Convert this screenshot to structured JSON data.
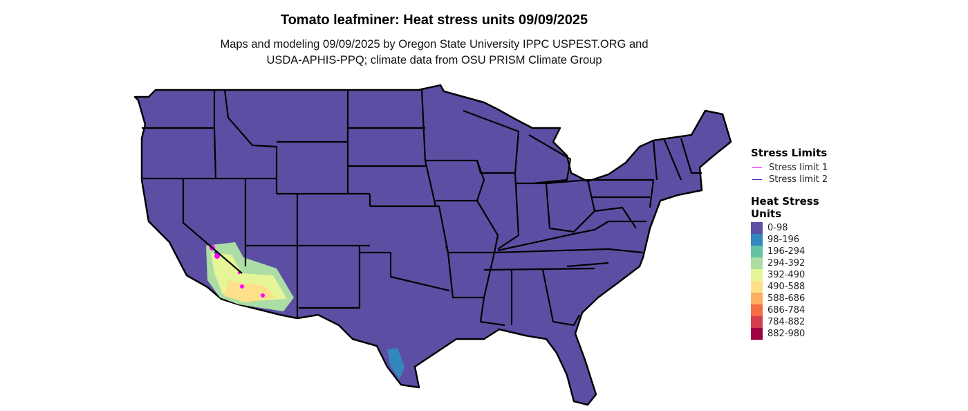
{
  "title": "Tomato leafminer: Heat stress units 09/09/2025",
  "subtitle_line1": "Maps and modeling 09/09/2025 by Oregon State University IPPC USPEST.ORG and",
  "subtitle_line2": "USDA-APHIS-PPQ; climate data from OSU PRISM Climate Group",
  "legend": {
    "stress_title": "Stress Limits",
    "stress_items": [
      {
        "label": "Stress limit 1",
        "color": "#ff00ff"
      },
      {
        "label": "Stress limit 2",
        "color": "#3b2fc9"
      }
    ],
    "heat_title_1": "Heat Stress",
    "heat_title_2": "Units",
    "heat_items": [
      {
        "label": "0-98",
        "color": "#5e4fa2"
      },
      {
        "label": "98-196",
        "color": "#3288bd"
      },
      {
        "label": "196-294",
        "color": "#66c2a5"
      },
      {
        "label": "294-392",
        "color": "#abdda4"
      },
      {
        "label": "392-490",
        "color": "#e6f598"
      },
      {
        "label": "490-588",
        "color": "#fee08b"
      },
      {
        "label": "588-686",
        "color": "#fdae61"
      },
      {
        "label": "686-784",
        "color": "#f46d43"
      },
      {
        "label": "784-882",
        "color": "#d53e4f"
      },
      {
        "label": "882-980",
        "color": "#9e0142"
      }
    ]
  }
}
